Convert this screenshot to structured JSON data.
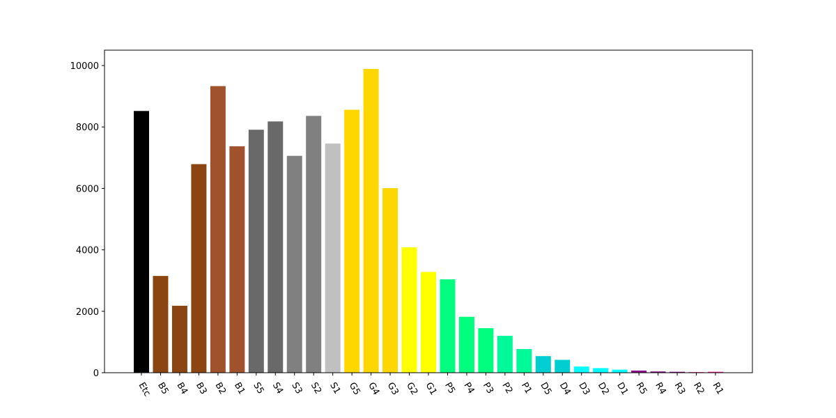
{
  "chart_data": {
    "type": "bar",
    "title": "",
    "xlabel": "",
    "ylabel": "",
    "ylim": [
      0,
      10500
    ],
    "yticks": [
      0,
      2000,
      4000,
      6000,
      8000,
      10000
    ],
    "ytick_labels": [
      "0",
      "2000",
      "4000",
      "6000",
      "8000",
      "10000"
    ],
    "grid": false,
    "categories": [
      "Etc",
      "B5",
      "B4",
      "B3",
      "B2",
      "B1",
      "S5",
      "S4",
      "S3",
      "S2",
      "S1",
      "G5",
      "G4",
      "G3",
      "G2",
      "G1",
      "P5",
      "P4",
      "P3",
      "P2",
      "P1",
      "D5",
      "D4",
      "D3",
      "D2",
      "D1",
      "R5",
      "R4",
      "R3",
      "R2",
      "R1"
    ],
    "values": [
      8520,
      3150,
      2180,
      6790,
      9330,
      7370,
      7910,
      8180,
      7060,
      8360,
      7460,
      8560,
      9890,
      6010,
      4080,
      3280,
      3040,
      1820,
      1450,
      1200,
      770,
      540,
      420,
      200,
      150,
      100,
      70,
      40,
      30,
      20,
      30
    ],
    "colors": [
      "#000000",
      "#8b4513",
      "#8b4513",
      "#8b4513",
      "#a0522d",
      "#a0522d",
      "#696969",
      "#696969",
      "#808080",
      "#808080",
      "#c0c0c0",
      "#ffd700",
      "#ffd700",
      "#ffd700",
      "#ffff00",
      "#ffff00",
      "#00ff7f",
      "#00ff7f",
      "#00ff7f",
      "#00fa9a",
      "#00fa9a",
      "#00ced1",
      "#00ced1",
      "#00ffff",
      "#00ffff",
      "#00ffff",
      "#8b008b",
      "#800080",
      "#800080",
      "#ff1493",
      "#ff1493"
    ]
  }
}
